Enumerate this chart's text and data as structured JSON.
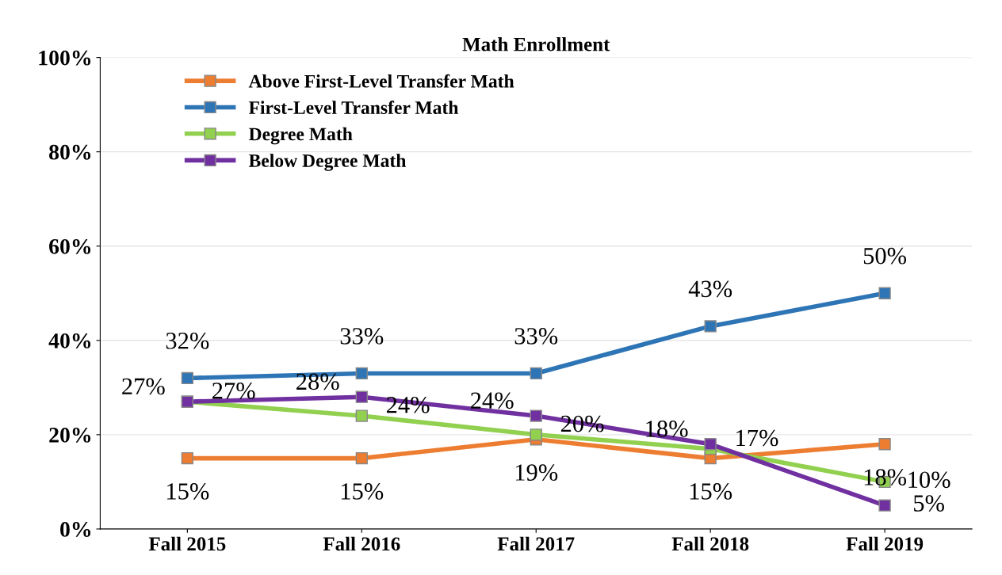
{
  "chart_data": {
    "type": "line",
    "title": "Math Enrollment",
    "categories": [
      "Fall 2015",
      "Fall 2016",
      "Fall 2017",
      "Fall 2018",
      "Fall 2019"
    ],
    "series": [
      {
        "name": "Above First-Level Transfer Math",
        "color": "#ed7d31",
        "values": [
          15,
          15,
          19,
          15,
          18
        ],
        "value_labels": [
          "15%",
          "15%",
          "19%",
          "15%",
          "18%"
        ]
      },
      {
        "name": "First-Level Transfer Math",
        "color": "#2e75b6",
        "values": [
          32,
          33,
          33,
          43,
          50
        ],
        "value_labels": [
          "32%",
          "33%",
          "33%",
          "43%",
          "50%"
        ]
      },
      {
        "name": "Degree Math",
        "color": "#92d050",
        "values": [
          27,
          24,
          20,
          17,
          10
        ],
        "value_labels": [
          "27%",
          "24%",
          "20%",
          "17%",
          "10%"
        ]
      },
      {
        "name": "Below Degree Math",
        "color": "#7030a0",
        "values": [
          27,
          28,
          24,
          18,
          5
        ],
        "value_labels": [
          "27%",
          "28%",
          "24%",
          "18%",
          "5%"
        ]
      }
    ],
    "ylim": [
      0,
      100
    ],
    "yticks": [
      {
        "value": 0,
        "label": "0%"
      },
      {
        "value": 20,
        "label": "20%"
      },
      {
        "value": 40,
        "label": "40%"
      },
      {
        "value": 60,
        "label": "60%"
      },
      {
        "value": 80,
        "label": "80%"
      },
      {
        "value": 100,
        "label": "100%"
      }
    ],
    "grid": "y",
    "legend": "top left",
    "marker": "square",
    "line_style": "solid"
  }
}
